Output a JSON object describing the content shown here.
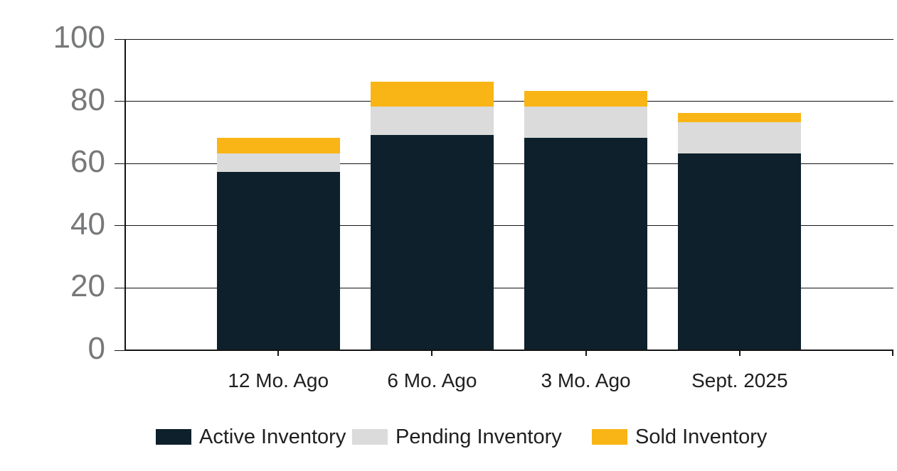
{
  "chart_data": {
    "type": "bar",
    "stacked": true,
    "title": "",
    "xlabel": "",
    "ylabel": "",
    "categories": [
      "12 Mo. Ago",
      "6 Mo. Ago",
      "3 Mo. Ago",
      "Sept. 2025"
    ],
    "series": [
      {
        "name": "Active Inventory",
        "color": "#0D202C",
        "values": [
          57,
          69,
          68,
          63
        ]
      },
      {
        "name": "Pending Inventory",
        "color": "#DBDBDB",
        "values": [
          6,
          9,
          10,
          10
        ]
      },
      {
        "name": "Sold Inventory",
        "color": "#F9B515",
        "values": [
          5,
          8,
          5,
          3
        ]
      }
    ],
    "stack_totals": [
      68,
      86,
      83,
      76
    ],
    "ylim": [
      0,
      100
    ],
    "y_ticks": [
      0,
      20,
      40,
      60,
      80,
      100
    ],
    "grid": true,
    "legend_position": "bottom"
  },
  "style": {
    "background": "#FFFFFF",
    "axis_color": "#141414",
    "grid_color": "#141414",
    "y_label_color": "#77787A",
    "x_label_color": "#1F1F1F",
    "legend_text_color": "#1F1F1F"
  }
}
